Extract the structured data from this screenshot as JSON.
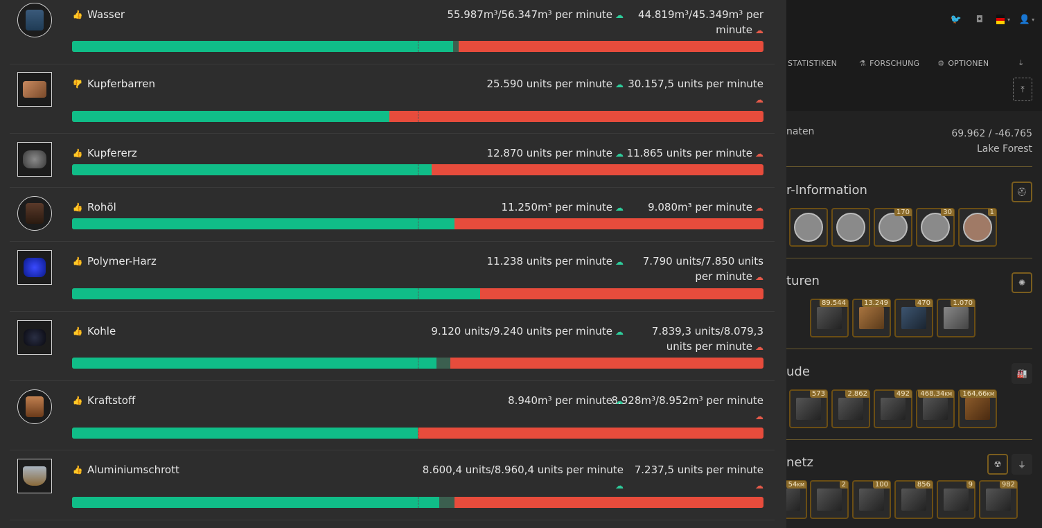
{
  "header": {
    "nav": [
      {
        "label": "STATISTIKEN"
      },
      {
        "label": "FORSCHUNG"
      },
      {
        "label": "OPTIONEN"
      }
    ]
  },
  "location": {
    "label": "naten",
    "coords": "69.962 / -46.765",
    "place": "Lake Forest"
  },
  "sections": {
    "player_info": {
      "title": "r-Information",
      "badges": [
        "170",
        "30",
        "1"
      ]
    },
    "structures": {
      "title": "turen",
      "badges": [
        "89.544",
        "13.249",
        "470",
        "1.070"
      ]
    },
    "buildings": {
      "title": "ude",
      "badges": [
        "573",
        "2.862",
        "492",
        "468,34",
        "164,66"
      ],
      "units": [
        "KM",
        "KM"
      ]
    },
    "power": {
      "title": "netz",
      "badges": [
        "54",
        "2",
        "100",
        "856",
        "9",
        "982"
      ],
      "units": [
        "KM"
      ]
    }
  },
  "colors": {
    "production": "#10bd88",
    "consumption": "#e74c3c",
    "panel": "#2d2d2d"
  },
  "items": [
    {
      "name": "Wasser",
      "trend": "up",
      "production": "55.987m³/56.347m³ per minute",
      "consumption": "44.819m³/45.349m³ per minute",
      "fill_fraction": 0.551,
      "buffer_fraction": 0.008,
      "icon": "water-canister-icon"
    },
    {
      "name": "Kupferbarren",
      "trend": "down",
      "production": "25.590 units per minute",
      "consumption": "30.157,5 units per minute",
      "fill_fraction": 0.459,
      "buffer_fraction": 0,
      "icon": "copper-ingot-icon"
    },
    {
      "name": "Kupfererz",
      "trend": "up",
      "production": "12.870 units per minute",
      "consumption": "11.865 units per minute",
      "fill_fraction": 0.52,
      "buffer_fraction": 0,
      "icon": "copper-ore-icon"
    },
    {
      "name": "Rohöl",
      "trend": "up",
      "production": "11.250m³ per minute",
      "consumption": "9.080m³ per minute",
      "fill_fraction": 0.553,
      "buffer_fraction": 0,
      "icon": "crude-oil-canister-icon"
    },
    {
      "name": "Polymer-Harz",
      "trend": "up",
      "production": "11.238 units per minute",
      "consumption": "7.790 units/7.850 units per minute",
      "fill_fraction": 0.59,
      "buffer_fraction": 0,
      "icon": "polymer-resin-icon"
    },
    {
      "name": "Kohle",
      "trend": "up",
      "production": "9.120 units/9.240 units per minute",
      "consumption": "7.839,3 units/8.079,3 units per minute",
      "fill_fraction": 0.527,
      "buffer_fraction": 0.02,
      "icon": "coal-icon"
    },
    {
      "name": "Kraftstoff",
      "trend": "up",
      "production": "8.940m³ per minute",
      "consumption": "8.928m³/8.952m³ per minute",
      "fill_fraction": 0.5,
      "buffer_fraction": 0,
      "icon": "fuel-canister-icon"
    },
    {
      "name": "Aluminiumschrott",
      "trend": "up",
      "production": "8.600,4 units/8.960,4 units per minute",
      "consumption": "7.237,5 units per minute",
      "fill_fraction": 0.531,
      "buffer_fraction": 0.022,
      "icon": "aluminum-scrap-icon"
    }
  ]
}
